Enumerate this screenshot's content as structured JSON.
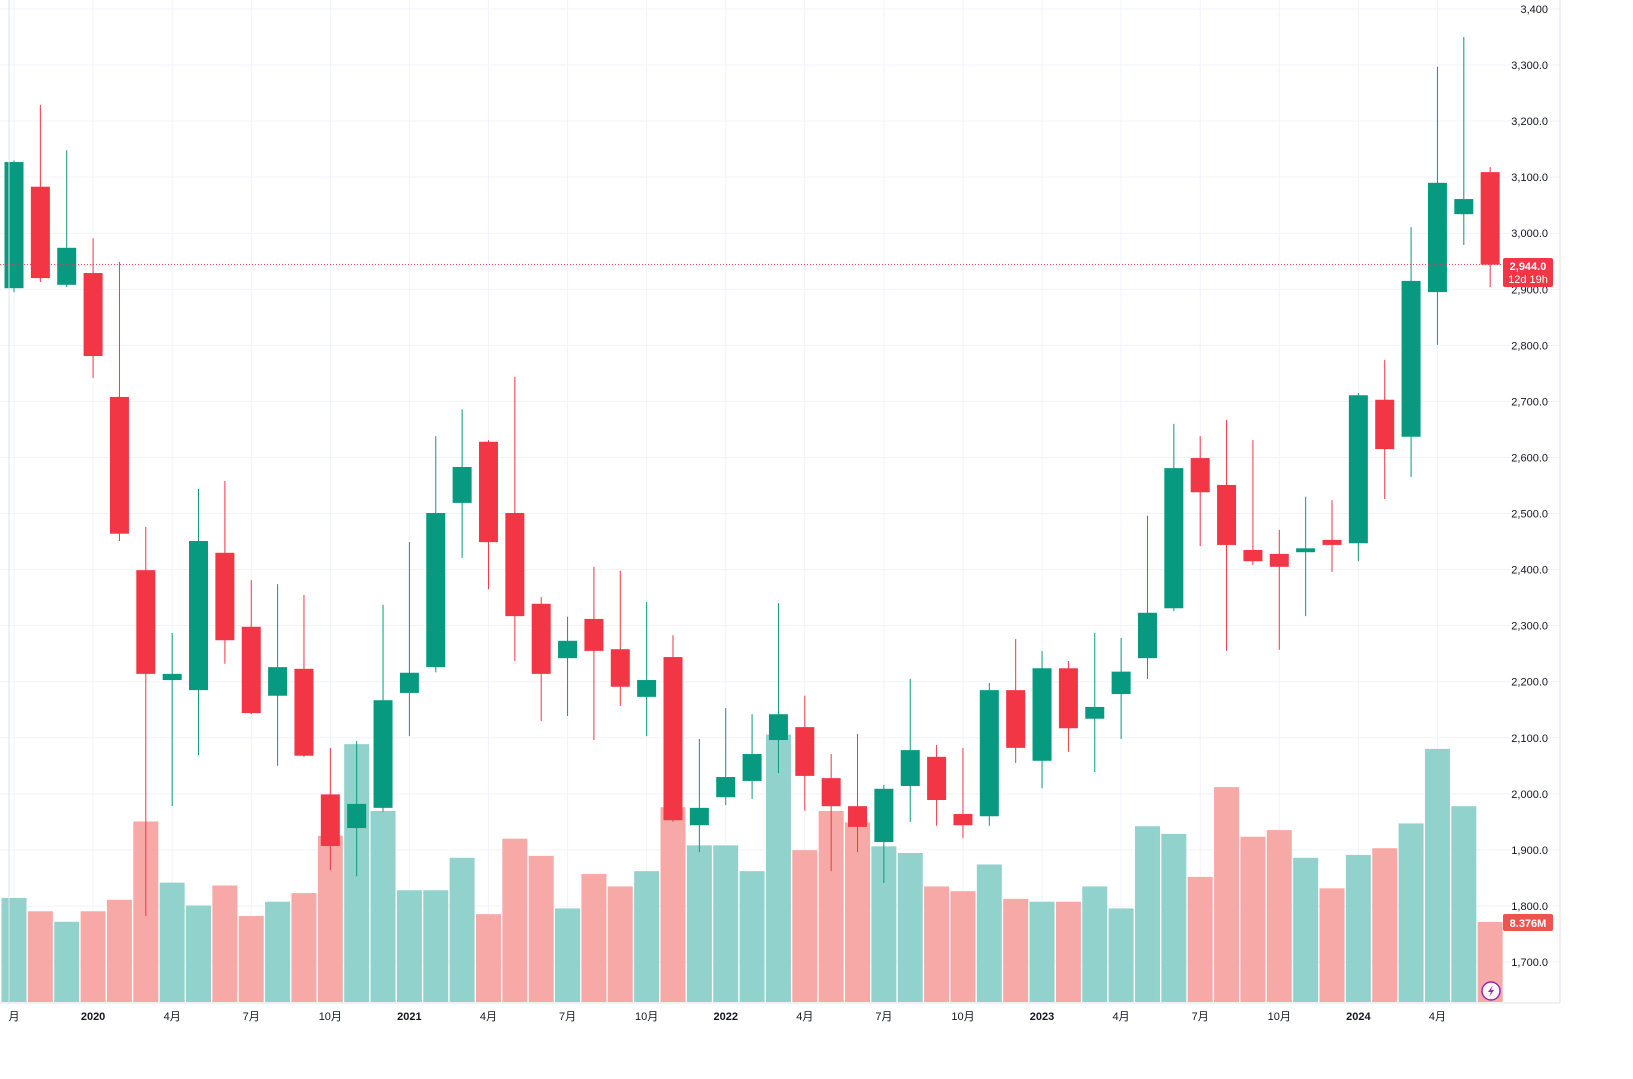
{
  "chart_data": {
    "type": "candlestick",
    "title": "",
    "interval": "1M",
    "y_axis": {
      "ticks": [
        "1,700.0",
        "1,800.0",
        "1,900.0",
        "2,000.0",
        "2,100.0",
        "2,200.0",
        "2,300.0",
        "2,400.0",
        "2,500.0",
        "2,600.0",
        "2,700.0",
        "2,800.0",
        "2,900.0",
        "3,000.0",
        "3,100.0",
        "3,200.0",
        "3,300.0",
        "3,400"
      ],
      "range": [
        1620,
        3400
      ]
    },
    "x_axis": {
      "ticks": [
        {
          "label": "月",
          "index": 0
        },
        {
          "label": "2020",
          "index": 3
        },
        {
          "label": "4月",
          "index": 6
        },
        {
          "label": "7月",
          "index": 9
        },
        {
          "label": "10月",
          "index": 12
        },
        {
          "label": "2021",
          "index": 15
        },
        {
          "label": "4月",
          "index": 18
        },
        {
          "label": "7月",
          "index": 21
        },
        {
          "label": "10月",
          "index": 24
        },
        {
          "label": "2022",
          "index": 27
        },
        {
          "label": "4月",
          "index": 30
        },
        {
          "label": "7月",
          "index": 33
        },
        {
          "label": "10月",
          "index": 36
        },
        {
          "label": "2023",
          "index": 39
        },
        {
          "label": "4月",
          "index": 42
        },
        {
          "label": "7月",
          "index": 45
        },
        {
          "label": "10月",
          "index": 48
        },
        {
          "label": "2024",
          "index": 51
        },
        {
          "label": "4月",
          "index": 54
        }
      ]
    },
    "columns": [
      "month",
      "open",
      "high",
      "low",
      "close",
      "volume_M"
    ],
    "candles": [
      [
        "2019-10",
        2902,
        3130,
        2895,
        3127,
        10.9
      ],
      [
        "2019-11",
        3083,
        3229,
        2913,
        2920,
        9.5
      ],
      [
        "2019-12",
        2908,
        3148,
        2904,
        2974,
        8.4
      ],
      [
        "2020-01",
        2929,
        2991,
        2742,
        2781,
        9.5
      ],
      [
        "2020-02",
        2708,
        2949,
        2451,
        2464,
        10.7
      ],
      [
        "2020-03",
        2399,
        2476,
        1782,
        2214,
        18.9
      ],
      [
        "2020-04",
        2203,
        2287,
        1978,
        2214,
        12.5
      ],
      [
        "2020-05",
        2185,
        2544,
        2069,
        2451,
        10.1
      ],
      [
        "2020-06",
        2430,
        2558,
        2232,
        2274,
        12.2
      ],
      [
        "2020-07",
        2298,
        2381,
        2142,
        2144,
        9.0
      ],
      [
        "2020-08",
        2175,
        2374,
        2050,
        2226,
        10.5
      ],
      [
        "2020-09",
        2223,
        2355,
        2066,
        2068,
        11.4
      ],
      [
        "2020-10",
        1999,
        2082,
        1864,
        1907,
        17.4
      ],
      [
        "2020-11",
        1939,
        2094,
        1853,
        1982,
        27.0
      ],
      [
        "2020-12",
        1975,
        2337,
        1968,
        2167,
        20.0
      ],
      [
        "2021-01",
        2180,
        2449,
        2103,
        2216,
        11.7
      ],
      [
        "2021-02",
        2226,
        2638,
        2217,
        2501,
        11.7
      ],
      [
        "2021-03",
        2519,
        2686,
        2421,
        2583,
        15.1
      ],
      [
        "2021-04",
        2628,
        2631,
        2365,
        2449,
        9.2
      ],
      [
        "2021-05",
        2501,
        2744,
        2237,
        2317,
        17.1
      ],
      [
        "2021-06",
        2339,
        2351,
        2130,
        2214,
        15.3
      ],
      [
        "2021-07",
        2242,
        2316,
        2139,
        2273,
        9.8
      ],
      [
        "2021-08",
        2312,
        2405,
        2096,
        2255,
        13.4
      ],
      [
        "2021-09",
        2258,
        2398,
        2157,
        2191,
        12.1
      ],
      [
        "2021-10",
        2173,
        2342,
        2103,
        2203,
        13.7
      ],
      [
        "2021-11",
        2244,
        2283,
        1950,
        1953,
        20.4
      ],
      [
        "2021-12",
        1944,
        2098,
        1896,
        1975,
        16.4
      ],
      [
        "2022-01",
        1994,
        2153,
        1980,
        2030,
        16.4
      ],
      [
        "2022-02",
        2023,
        2142,
        1991,
        2071,
        13.7
      ],
      [
        "2022-03",
        2096,
        2340,
        2037,
        2142,
        28.0
      ],
      [
        "2022-04",
        2119,
        2175,
        1970,
        2032,
        15.9
      ],
      [
        "2022-05",
        2028,
        2071,
        1862,
        1978,
        20.0
      ],
      [
        "2022-06",
        1978,
        2107,
        1896,
        1941,
        18.8
      ],
      [
        "2022-07",
        1914,
        2016,
        1841,
        2009,
        16.3
      ],
      [
        "2022-08",
        2014,
        2205,
        1950,
        2078,
        15.6
      ],
      [
        "2022-09",
        2066,
        2087,
        1943,
        1989,
        12.1
      ],
      [
        "2022-10",
        1964,
        2082,
        1921,
        1944,
        11.6
      ],
      [
        "2022-11",
        1960,
        2198,
        1943,
        2185,
        14.4
      ],
      [
        "2022-12",
        2185,
        2276,
        2055,
        2082,
        10.8
      ],
      [
        "2023-01",
        2059,
        2255,
        2010,
        2224,
        10.5
      ],
      [
        "2023-02",
        2224,
        2237,
        2075,
        2117,
        10.5
      ],
      [
        "2023-03",
        2134,
        2287,
        2039,
        2155,
        12.1
      ],
      [
        "2023-04",
        2178,
        2278,
        2098,
        2218,
        9.8
      ],
      [
        "2023-05",
        2242,
        2496,
        2205,
        2323,
        18.4
      ],
      [
        "2023-06",
        2331,
        2660,
        2326,
        2581,
        17.6
      ],
      [
        "2023-07",
        2599,
        2638,
        2442,
        2538,
        13.1
      ],
      [
        "2023-08",
        2551,
        2667,
        2255,
        2444,
        22.5
      ],
      [
        "2023-09",
        2435,
        2631,
        2408,
        2415,
        17.3
      ],
      [
        "2023-10",
        2428,
        2471,
        2257,
        2405,
        18.0
      ],
      [
        "2023-11",
        2431,
        2530,
        2317,
        2438,
        15.1
      ],
      [
        "2023-12",
        2453,
        2524,
        2396,
        2444,
        11.9
      ],
      [
        "2024-01",
        2447,
        2715,
        2415,
        2711,
        15.4
      ],
      [
        "2024-02",
        2703,
        2774,
        2526,
        2615,
        16.1
      ],
      [
        "2024-03",
        2637,
        3011,
        2565,
        2915,
        18.7
      ],
      [
        "2024-04",
        2895,
        3297,
        2801,
        3090,
        26.5
      ],
      [
        "2024-05",
        3034,
        3350,
        2979,
        3061,
        20.5
      ],
      [
        "2024-06",
        3109,
        3118,
        2904,
        2944,
        8.376
      ]
    ],
    "last_price_label": "2,944.0",
    "countdown_label": "12d 19h",
    "last_volume_label": "8.376M",
    "colors": {
      "up": "#089981",
      "down": "#f23645",
      "up_vol": "#92d2cc",
      "down_vol": "#f7a9a7",
      "grid": "#f0f3fa",
      "text": "#131722"
    }
  }
}
